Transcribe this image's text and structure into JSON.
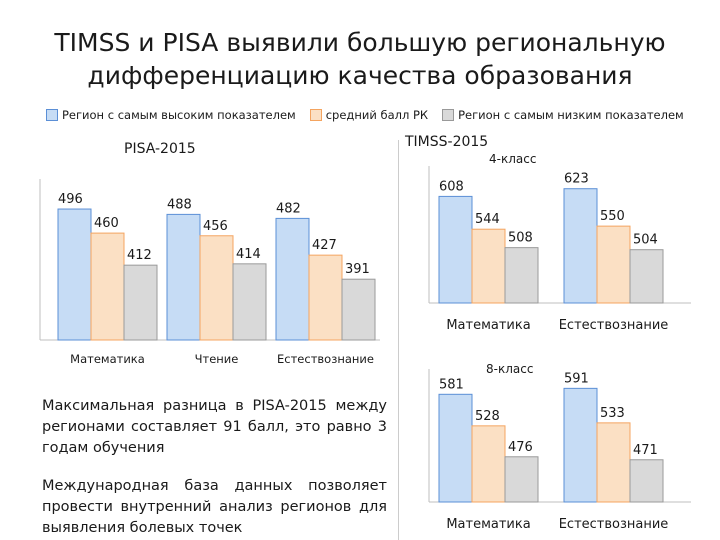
{
  "title": {
    "line1": "TIMSS и PISA выявили большую региональную",
    "line2": "дифференциацию качества образования"
  },
  "legend": [
    {
      "label": "Регион с самым высоким показателем",
      "color": "#c6dcf5"
    },
    {
      "label": "средний балл РК",
      "color": "#fbe0c4"
    },
    {
      "label": "Регион с самым низким показателем",
      "color": "#d9d9d9"
    }
  ],
  "colors": {
    "high": "#c6dcf5",
    "avg": "#fbe0c4",
    "low": "#d9d9d9",
    "high_border": "#5b8fd6",
    "avg_border": "#f4a460"
  },
  "chart_data": [
    {
      "type": "bar",
      "title": "PISA-2015",
      "subtitle": "",
      "categories": [
        "Математика",
        "Чтение",
        "Естествознание"
      ],
      "series": [
        {
          "name": "Регион с самым высоким показателем",
          "values": [
            496,
            488,
            482
          ]
        },
        {
          "name": "средний балл РК",
          "values": [
            460,
            456,
            427
          ]
        },
        {
          "name": "Регион с самым низким показателем",
          "values": [
            412,
            414,
            391
          ]
        }
      ],
      "ylim": [
        300,
        520
      ],
      "legend": "top"
    },
    {
      "type": "bar",
      "title": "TIMSS-2015",
      "subtitle": "4-класс",
      "categories": [
        "Математика",
        "Естествознание"
      ],
      "series": [
        {
          "name": "Регион с самым высоким показателем",
          "values": [
            608,
            623
          ]
        },
        {
          "name": "средний балл РК",
          "values": [
            544,
            550
          ]
        },
        {
          "name": "Регион с самым низким показателем",
          "values": [
            508,
            504
          ]
        }
      ],
      "ylim": [
        400,
        640
      ],
      "legend": "top"
    },
    {
      "type": "bar",
      "title": "",
      "subtitle": "8-класс",
      "categories": [
        "Математика",
        "Естествознание"
      ],
      "series": [
        {
          "name": "Регион с самым высоким показателем",
          "values": [
            581,
            591
          ]
        },
        {
          "name": "средний балл РК",
          "values": [
            528,
            533
          ]
        },
        {
          "name": "Регион с самым низким показателем",
          "values": [
            476,
            471
          ]
        }
      ],
      "ylim": [
        400,
        600
      ],
      "legend": "top"
    }
  ],
  "notes": {
    "p1": "Максимальная разница в PISA-2015 между регионами составляет 91 балл, это равно 3 годам обучения",
    "p2": "Международная база данных позволяет провести внутренний анализ регионов для выявления болевых точек"
  }
}
